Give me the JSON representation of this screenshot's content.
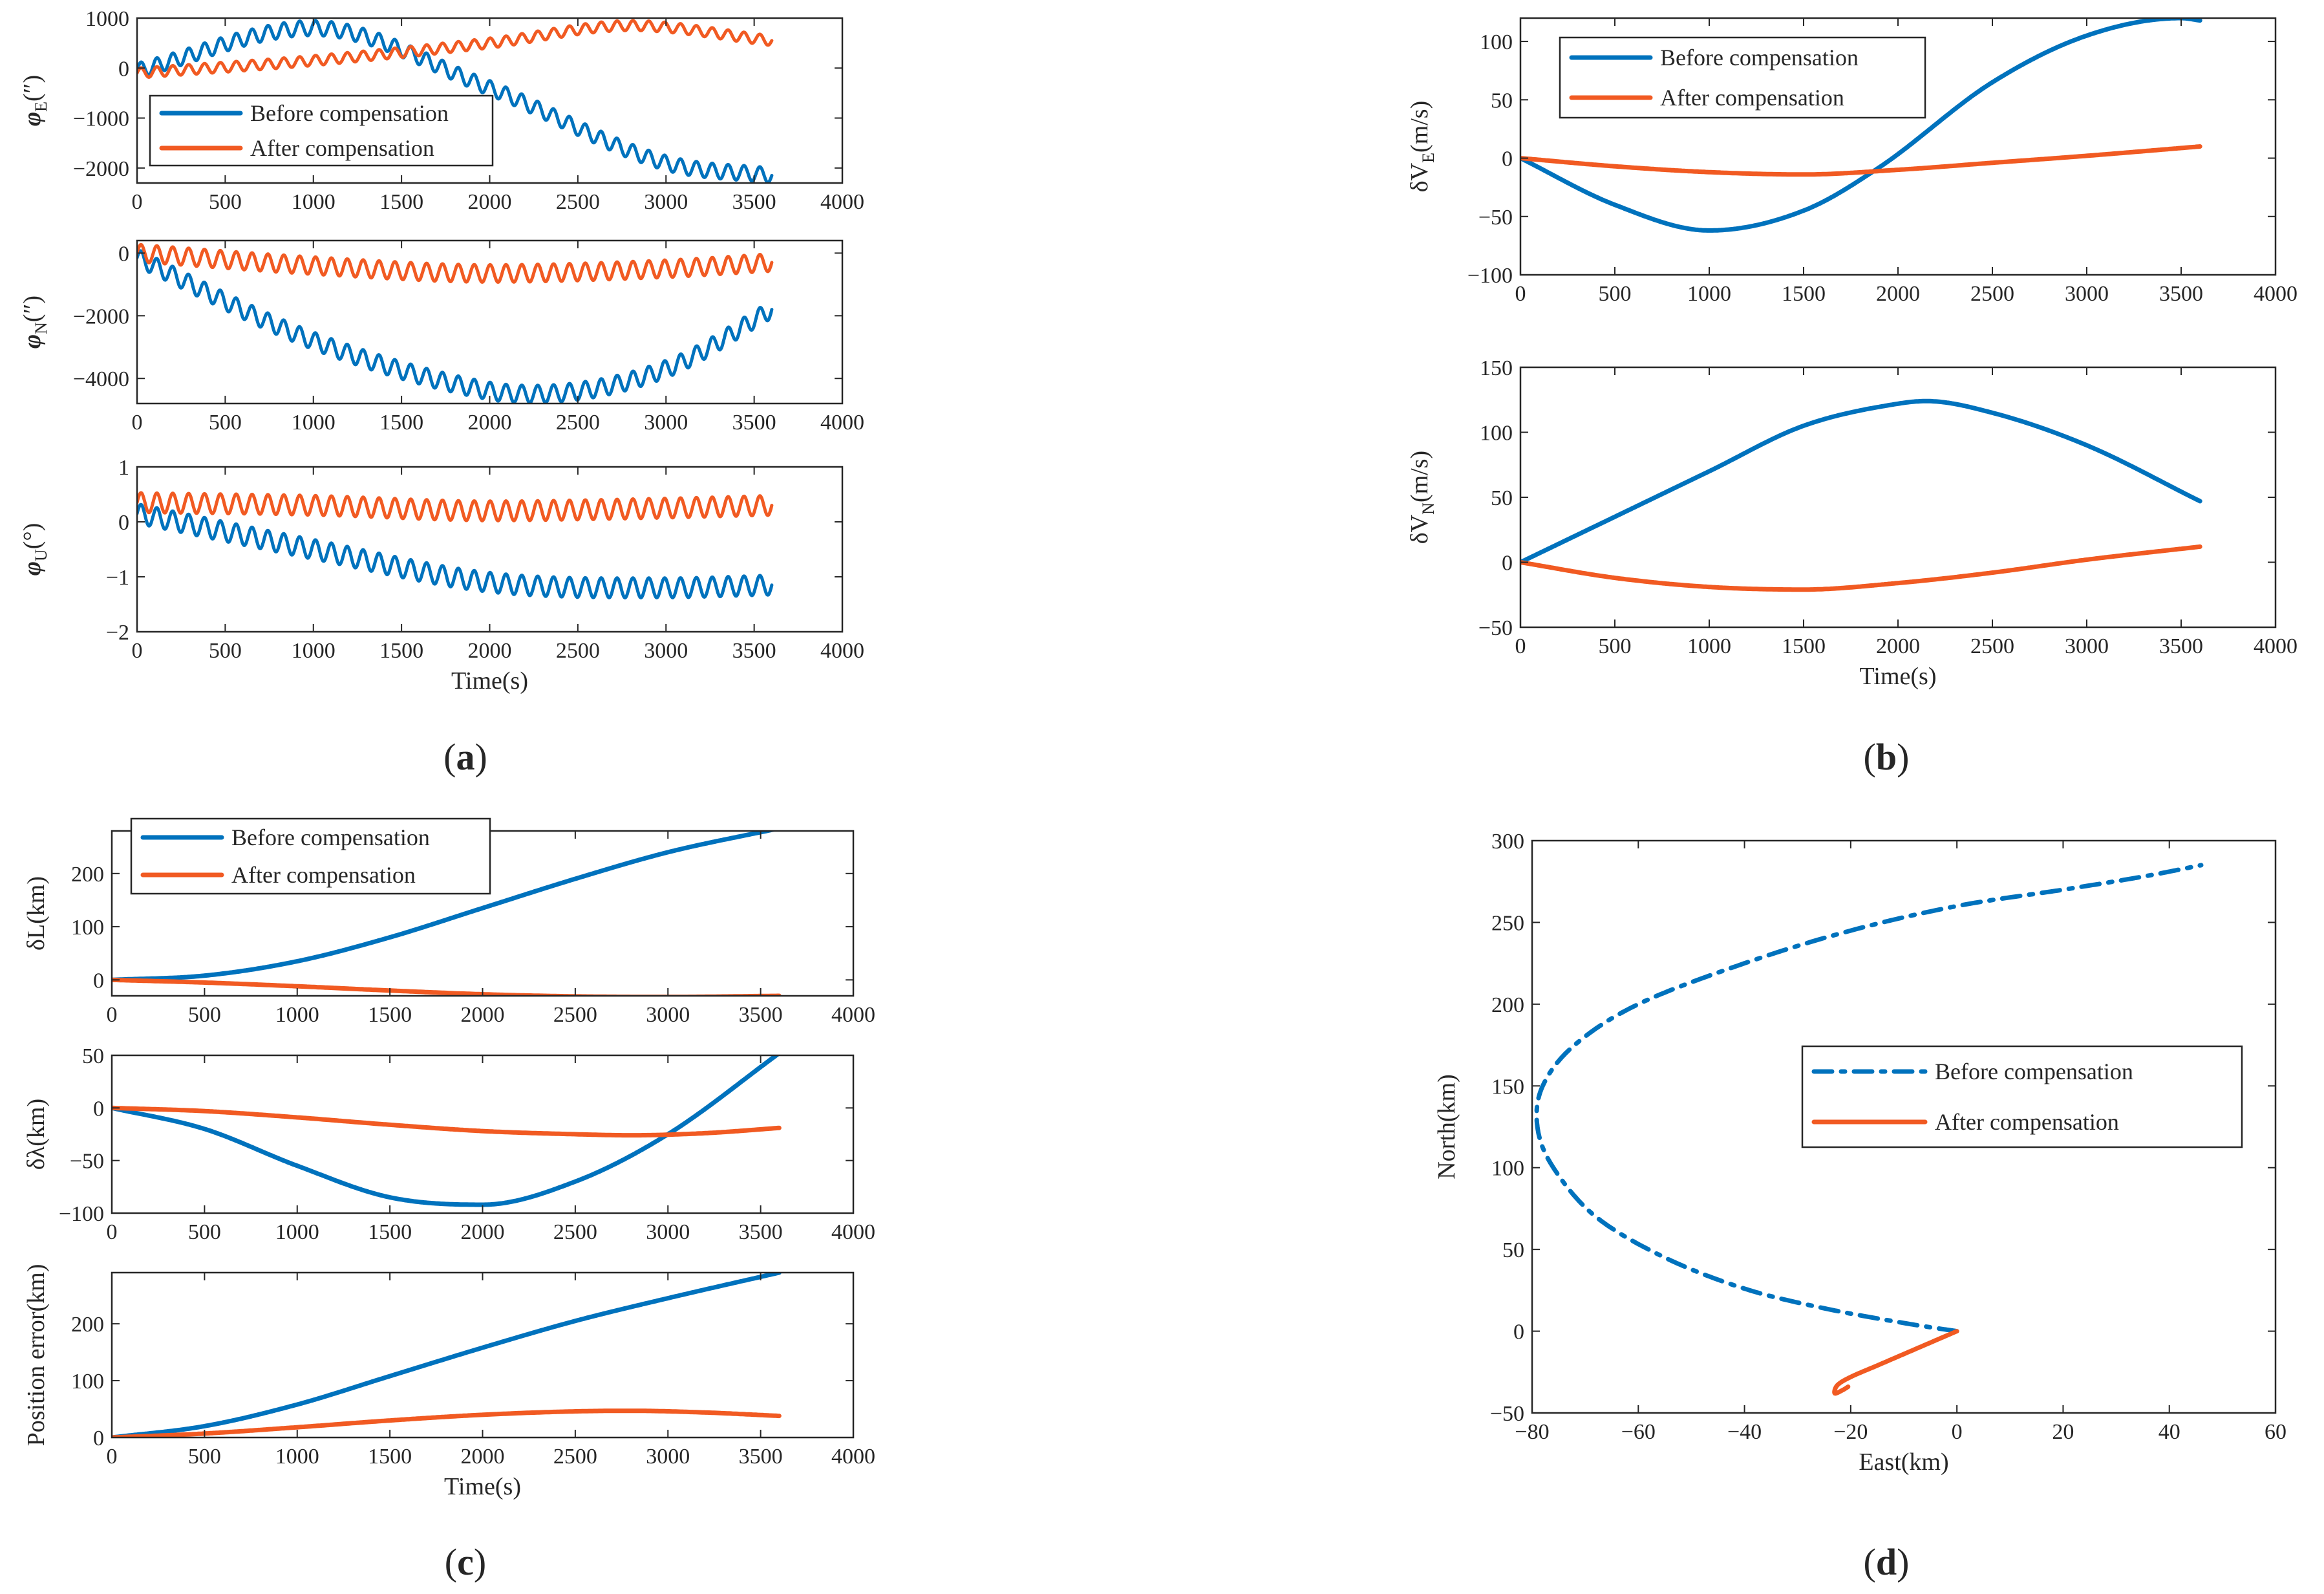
{
  "colors": {
    "before": "#0072BD",
    "after": "#F15A22",
    "axis": "#262626"
  },
  "chart_data": [
    {
      "panel": "a",
      "type": "line",
      "title": "",
      "xlabel": "",
      "ylabel": "φE(″)",
      "ylabel_main": "φ",
      "ylabel_sub": "E",
      "ylabel_tail": "(″)",
      "ylabel_italic": true,
      "xlim": [
        0,
        4000
      ],
      "ylim": [
        -2300,
        1000
      ],
      "xticks": [
        0,
        500,
        1000,
        1500,
        2000,
        2500,
        3000,
        3500,
        4000
      ],
      "yticks": [
        -2000,
        -1000,
        0,
        1000
      ],
      "legend": {
        "placement": "lower-left",
        "style": "solid",
        "entries": [
          "Before compensation",
          "After compensation"
        ]
      },
      "series": [
        {
          "name": "Before compensation",
          "key": "before",
          "x": [
            0,
            1000,
            2000,
            3000,
            3600
          ],
          "y": [
            -50,
            800,
            -400,
            -1900,
            -2150
          ],
          "oscillation": {
            "amplitude": 150,
            "period": 90
          }
        },
        {
          "name": "After compensation",
          "key": "after",
          "x": [
            0,
            1000,
            2000,
            2800,
            3600
          ],
          "y": [
            -100,
            150,
            500,
            850,
            550
          ],
          "oscillation": {
            "amplitude": 100,
            "period": 90
          }
        }
      ]
    },
    {
      "panel": "a",
      "type": "line",
      "title": "",
      "xlabel": "",
      "ylabel": "φN(″)",
      "ylabel_main": "φ",
      "ylabel_sub": "N",
      "ylabel_tail": "(″)",
      "ylabel_italic": true,
      "xlim": [
        0,
        4000
      ],
      "ylim": [
        -4800,
        400
      ],
      "xticks": [
        0,
        500,
        1000,
        1500,
        2000,
        2500,
        3000,
        3500,
        4000
      ],
      "yticks": [
        -4000,
        -2000,
        0
      ],
      "series": [
        {
          "name": "Before compensation",
          "key": "before",
          "x": [
            0,
            1000,
            2000,
            2250,
            3000,
            3600
          ],
          "y": [
            -150,
            -2800,
            -4400,
            -4500,
            -3700,
            -1800
          ],
          "oscillation": {
            "amplitude": 280,
            "period": 90
          }
        },
        {
          "name": "After compensation",
          "key": "after",
          "x": [
            0,
            1000,
            2000,
            3000,
            3600
          ],
          "y": [
            0,
            -400,
            -650,
            -500,
            -300
          ],
          "oscillation": {
            "amplitude": 280,
            "period": 90
          }
        }
      ]
    },
    {
      "panel": "a",
      "type": "line",
      "title": "",
      "xlabel": "Time(s)",
      "ylabel": "φU(°)",
      "ylabel_main": "φ",
      "ylabel_sub": "U",
      "ylabel_tail": "(°)",
      "ylabel_italic": true,
      "xlim": [
        0,
        4000
      ],
      "ylim": [
        -2,
        1
      ],
      "xticks": [
        0,
        500,
        1000,
        1500,
        2000,
        2500,
        3000,
        3500,
        4000
      ],
      "yticks": [
        -2,
        -1,
        0,
        1
      ],
      "series": [
        {
          "name": "Before compensation",
          "key": "before",
          "x": [
            0,
            1000,
            2000,
            3000,
            3600
          ],
          "y": [
            0.15,
            -0.5,
            -1.1,
            -1.2,
            -1.15
          ],
          "oscillation": {
            "amplitude": 0.18,
            "period": 90
          }
        },
        {
          "name": "After compensation",
          "key": "after",
          "x": [
            0,
            1000,
            2000,
            3000,
            3600
          ],
          "y": [
            0.35,
            0.3,
            0.2,
            0.25,
            0.3
          ],
          "oscillation": {
            "amplitude": 0.18,
            "period": 90
          }
        }
      ]
    },
    {
      "panel": "b",
      "type": "line",
      "title": "",
      "xlabel": "",
      "ylabel": "δVE(m/s)",
      "ylabel_main": "δV",
      "ylabel_sub": "E",
      "ylabel_tail": "(m/s)",
      "ylabel_italic": false,
      "xlim": [
        0,
        4000
      ],
      "ylim": [
        -100,
        120
      ],
      "xticks": [
        0,
        500,
        1000,
        1500,
        2000,
        2500,
        3000,
        3500,
        4000
      ],
      "yticks": [
        -100,
        -50,
        0,
        50,
        100
      ],
      "legend": {
        "placement": "top-left",
        "style": "solid",
        "entries": [
          "Before compensation",
          "After compensation"
        ]
      },
      "series": [
        {
          "name": "Before compensation",
          "key": "before",
          "x": [
            0,
            500,
            1000,
            1500,
            1900,
            2500,
            3000,
            3500,
            3600
          ],
          "y": [
            0,
            -40,
            -62,
            -45,
            -8,
            65,
            105,
            120,
            118
          ]
        },
        {
          "name": "After compensation",
          "key": "after",
          "x": [
            0,
            500,
            1000,
            1500,
            2000,
            2500,
            3000,
            3600
          ],
          "y": [
            0,
            -7,
            -12,
            -14,
            -10,
            -4,
            2,
            10
          ]
        }
      ]
    },
    {
      "panel": "b",
      "type": "line",
      "title": "",
      "xlabel": "Time(s)",
      "ylabel": "δVN(m/s)",
      "ylabel_main": "δV",
      "ylabel_sub": "N",
      "ylabel_tail": "(m/s)",
      "ylabel_italic": false,
      "xlim": [
        0,
        4000
      ],
      "ylim": [
        -50,
        150
      ],
      "xticks": [
        0,
        500,
        1000,
        1500,
        2000,
        2500,
        3000,
        3500,
        4000
      ],
      "yticks": [
        -50,
        0,
        50,
        100,
        150
      ],
      "series": [
        {
          "name": "Before compensation",
          "key": "before",
          "x": [
            0,
            500,
            1000,
            1500,
            2000,
            2150,
            2500,
            3000,
            3600
          ],
          "y": [
            0,
            35,
            70,
            105,
            122,
            124,
            115,
            90,
            47
          ]
        },
        {
          "name": "After compensation",
          "key": "after",
          "x": [
            0,
            500,
            1000,
            1500,
            2000,
            2500,
            3000,
            3600
          ],
          "y": [
            0,
            -12,
            -19,
            -21,
            -16,
            -8,
            2,
            12
          ]
        }
      ]
    },
    {
      "panel": "c",
      "type": "line",
      "title": "",
      "xlabel": "",
      "ylabel": "δL(km)",
      "ylabel_main": "δL",
      "ylabel_sub": "",
      "ylabel_tail": "(km)",
      "ylabel_italic": false,
      "xlim": [
        0,
        4000
      ],
      "ylim": [
        -30,
        280
      ],
      "xticks": [
        0,
        500,
        1000,
        1500,
        2000,
        2500,
        3000,
        3500,
        4000
      ],
      "yticks": [
        0,
        100,
        200
      ],
      "legend": {
        "placement": "top-left",
        "style": "solid",
        "entries": [
          "Before compensation",
          "After compensation"
        ]
      },
      "series": [
        {
          "name": "Before compensation",
          "key": "before",
          "x": [
            0,
            500,
            1000,
            1500,
            2000,
            2500,
            3000,
            3600
          ],
          "y": [
            0,
            8,
            35,
            80,
            135,
            190,
            240,
            285
          ]
        },
        {
          "name": "After compensation",
          "key": "after",
          "x": [
            0,
            500,
            1000,
            1500,
            2000,
            2500,
            3000,
            3600
          ],
          "y": [
            0,
            -5,
            -12,
            -20,
            -27,
            -31,
            -32,
            -30
          ]
        }
      ]
    },
    {
      "panel": "c",
      "type": "line",
      "title": "",
      "xlabel": "",
      "ylabel": "δλ(km)",
      "ylabel_main": "δλ",
      "ylabel_sub": "",
      "ylabel_tail": "(km)",
      "ylabel_italic": false,
      "xlim": [
        0,
        4000
      ],
      "ylim": [
        -100,
        50
      ],
      "xticks": [
        0,
        500,
        1000,
        1500,
        2000,
        2500,
        3000,
        3500,
        4000
      ],
      "yticks": [
        -100,
        -50,
        0,
        50
      ],
      "series": [
        {
          "name": "Before compensation",
          "key": "before",
          "x": [
            0,
            500,
            1000,
            1500,
            2000,
            2500,
            3000,
            3600
          ],
          "y": [
            0,
            -20,
            -55,
            -85,
            -92,
            -70,
            -25,
            52
          ]
        },
        {
          "name": "After compensation",
          "key": "after",
          "x": [
            0,
            500,
            1000,
            1500,
            2000,
            2500,
            2800,
            3200,
            3600
          ],
          "y": [
            0,
            -3,
            -9,
            -16,
            -22,
            -25,
            -26,
            -24,
            -19
          ]
        }
      ]
    },
    {
      "panel": "c",
      "type": "line",
      "title": "",
      "xlabel": "Time(s)",
      "ylabel": "Position error(km)",
      "ylabel_main": "Position error",
      "ylabel_sub": "",
      "ylabel_tail": "(km)",
      "ylabel_italic": false,
      "xlim": [
        0,
        4000
      ],
      "ylim": [
        0,
        290
      ],
      "xticks": [
        0,
        500,
        1000,
        1500,
        2000,
        2500,
        3000,
        3500,
        4000
      ],
      "yticks": [
        0,
        100,
        200
      ],
      "series": [
        {
          "name": "Before compensation",
          "key": "before",
          "x": [
            0,
            500,
            1000,
            1500,
            2000,
            2500,
            3000,
            3600
          ],
          "y": [
            0,
            20,
            58,
            108,
            158,
            205,
            245,
            290
          ]
        },
        {
          "name": "After compensation",
          "key": "after",
          "x": [
            0,
            500,
            1000,
            1500,
            2000,
            2500,
            2800,
            3200,
            3600
          ],
          "y": [
            0,
            7,
            18,
            30,
            40,
            46,
            47,
            44,
            38
          ]
        }
      ]
    },
    {
      "panel": "d",
      "type": "line",
      "title": "",
      "xlabel": "East(km)",
      "ylabel": "North(km)",
      "ylabel_main": "North",
      "ylabel_sub": "",
      "ylabel_tail": "(km)",
      "ylabel_italic": false,
      "xlim": [
        -80,
        60
      ],
      "ylim": [
        -50,
        300
      ],
      "xticks": [
        -80,
        -60,
        -40,
        -20,
        0,
        20,
        40,
        60
      ],
      "yticks": [
        -50,
        0,
        50,
        100,
        150,
        200,
        250,
        300
      ],
      "legend": {
        "placement": "middle-right",
        "style": "dashdot-before",
        "entries": [
          "Before compensation",
          "After compensation"
        ]
      },
      "series": [
        {
          "name": "Before compensation",
          "key": "before",
          "dash": "dashdot",
          "x": [
            0,
            -10,
            -25,
            -40,
            -55,
            -68,
            -76,
            -79,
            -78,
            -72,
            -60,
            -40,
            -20,
            0,
            20,
            35,
            46
          ],
          "y": [
            0,
            5,
            14,
            26,
            45,
            70,
            100,
            125,
            150,
            175,
            200,
            225,
            245,
            260,
            270,
            278,
            285
          ]
        },
        {
          "name": "After compensation",
          "key": "after",
          "x": [
            0,
            -5,
            -10,
            -15,
            -20,
            -22.5,
            -23,
            -21.5,
            -20.5
          ],
          "y": [
            0,
            -7,
            -14,
            -21,
            -28,
            -33,
            -38,
            -36,
            -34
          ]
        }
      ]
    }
  ],
  "panel_labels": [
    {
      "id": "a",
      "text": "(a)",
      "bold": "a"
    },
    {
      "id": "b",
      "text": "(b)",
      "bold": "b"
    },
    {
      "id": "c",
      "text": "(c)",
      "bold": "c"
    },
    {
      "id": "d",
      "text": "(d)",
      "bold": "d"
    }
  ]
}
